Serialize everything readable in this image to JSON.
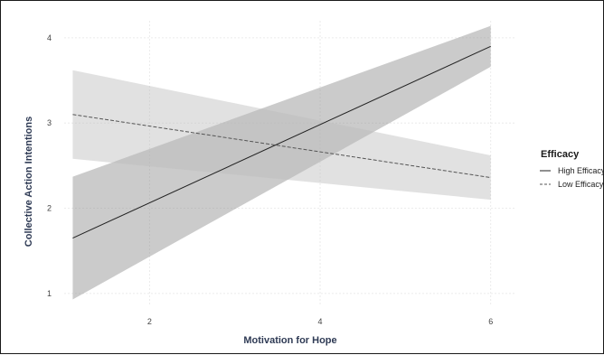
{
  "chart_data": {
    "type": "line",
    "xlabel": "Motivation for Hope",
    "ylabel": "Collective Action Intentions",
    "xlim": [
      1,
      6.3
    ],
    "ylim": [
      0.85,
      4.2
    ],
    "x_ticks": [
      2,
      4,
      6
    ],
    "y_ticks": [
      1,
      2,
      3,
      4
    ],
    "grid": true,
    "legend": {
      "title": "Efficacy",
      "placement": "right"
    },
    "series": [
      {
        "name": "High Efficacy",
        "line_style": "solid",
        "color": "#222222",
        "ci_color": "#8c8c8c",
        "x": [
          1.1,
          6
        ],
        "y": [
          1.65,
          3.9
        ],
        "ci_lower": [
          0.93,
          3.66
        ],
        "ci_upper": [
          2.37,
          4.14
        ]
      },
      {
        "name": "Low Efficacy",
        "line_style": "dashed",
        "color": "#555555",
        "ci_color": "#bdbdbd",
        "x": [
          1.1,
          6
        ],
        "y": [
          3.1,
          2.36
        ],
        "ci_lower": [
          2.58,
          2.1
        ],
        "ci_upper": [
          3.62,
          2.62
        ]
      }
    ]
  }
}
